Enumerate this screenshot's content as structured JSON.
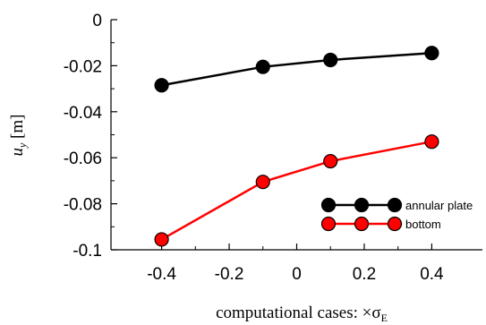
{
  "chart_data": {
    "type": "line",
    "x": [
      -0.4,
      -0.1,
      0.1,
      0.4
    ],
    "series": [
      {
        "name": "annular plate",
        "values": [
          -0.0285,
          -0.0205,
          -0.0175,
          -0.0145
        ],
        "color": "#000000",
        "marker_fill": "#000000"
      },
      {
        "name": "bottom",
        "values": [
          -0.0955,
          -0.0705,
          -0.0615,
          -0.053
        ],
        "color": "#ff0000",
        "marker_fill": "#ff0000"
      }
    ],
    "xlabel": "computational cases: ×σ",
    "xlabel_subscript": "E",
    "ylabel_symbol": "u",
    "ylabel_subscript": "y",
    "ylabel_unit": "[m]",
    "xlim": [
      -0.55,
      0.55
    ],
    "ylim": [
      -0.1,
      0
    ],
    "xticks": [
      -0.4,
      -0.2,
      0,
      0.2,
      0.4
    ],
    "xtick_labels": [
      "-0.4",
      "-0.2",
      "0",
      "0.2",
      "0.4"
    ],
    "yticks": [
      0,
      -0.02,
      -0.04,
      -0.06,
      -0.08,
      -0.1
    ],
    "ytick_labels": [
      "0",
      "-0.02",
      "-0.04",
      "-0.06",
      "-0.08",
      "-0.1"
    ],
    "grid": false,
    "legend_position": "bottom-right"
  }
}
